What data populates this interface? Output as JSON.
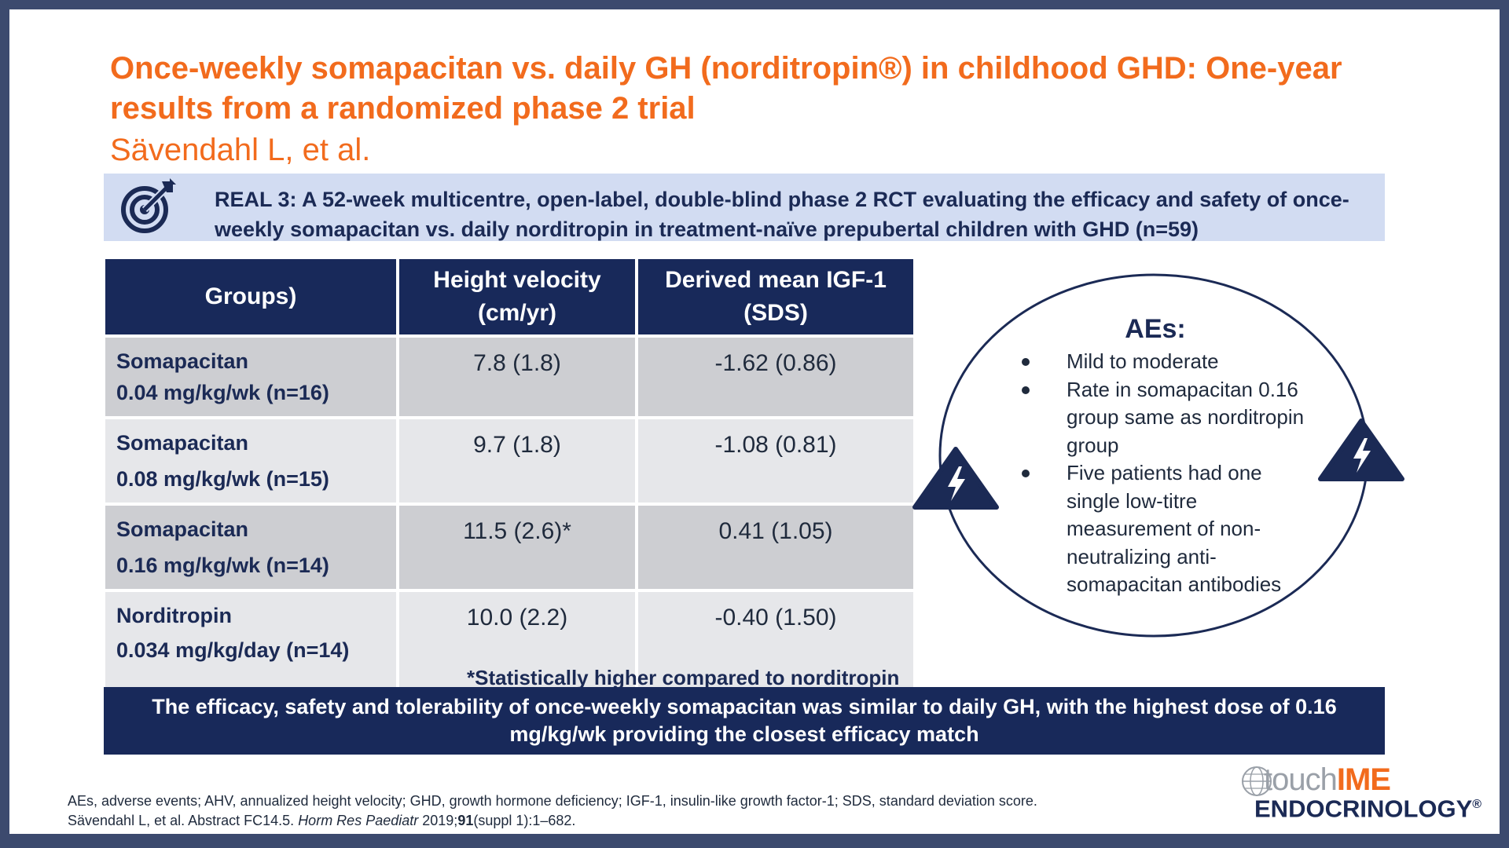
{
  "title": "Once-weekly somapacitan vs. daily GH (norditropin®) in childhood GHD: One-year results from a randomized phase 2 trial",
  "authors": "Sävendahl L, et al.",
  "study": {
    "icon": "target-icon",
    "text": "REAL 3: A 52-week multicentre, open-label, double-blind phase 2 RCT evaluating the efficacy and safety of once-weekly somapacitan vs. daily norditropin in treatment-naïve prepubertal children with GHD (n=59)"
  },
  "table": {
    "headers": [
      "Groups)",
      "Height velocity (cm/yr)",
      "Derived mean IGF-1 (SDS)"
    ],
    "rows": [
      {
        "name": "Somapacitan",
        "dose": "0.04 mg/kg/wk (n=16)",
        "hv": "7.8 (1.8)",
        "igf": "-1.62 (0.86)"
      },
      {
        "name": "Somapacitan",
        "dose": "0.08 mg/kg/wk (n=15)",
        "hv": "9.7 (1.8)",
        "igf": "-1.08 (0.81)"
      },
      {
        "name": "Somapacitan",
        "dose": "0.16 mg/kg/wk (n=14)",
        "hv": "11.5 (2.6)*",
        "igf": "0.41 (1.05)"
      },
      {
        "name": "Norditropin",
        "dose": "0.034 mg/kg/day (n=14)",
        "hv": "10.0 (2.2)",
        "igf": "-0.40 (1.50)"
      }
    ],
    "footnote": "*Statistically higher compared to norditropin"
  },
  "aes": {
    "title": "AEs:",
    "items": [
      "Mild to moderate",
      "Rate in somapacitan 0.16 group same as norditropin group",
      "Five patients had one single low-titre measurement of non-neutralizing anti-somapacitan antibodies"
    ],
    "icon": "warning-icon"
  },
  "conclusion": "The efficacy, safety and tolerability of once-weekly somapacitan was similar to daily GH, with the highest dose of 0.16 mg/kg/wk providing the closest efficacy match",
  "footer": {
    "abbreviations": "AEs, adverse events; AHV, annualized height velocity; GHD, growth hormone deficiency; IGF-1, insulin-like growth factor-1; SDS, standard deviation score.",
    "ref_prefix": "Sävendahl L, et al. Abstract FC14.5.",
    "ref_journal": "Horm Res Paediatr",
    "ref_year": "2019;",
    "ref_volume": "91",
    "ref_suffix": "(suppl 1):1–682."
  },
  "logo": {
    "touch": "touch",
    "ime": "IME",
    "specialty": "ENDOCRINOLOGY",
    "mark": "®",
    "icon": "globe-icon"
  },
  "colors": {
    "title": "#f26b1d",
    "navy": "#18295a",
    "study_box": "#d2dcf2",
    "row_shade": "#cdced2",
    "row_light": "#e6e7ea"
  }
}
